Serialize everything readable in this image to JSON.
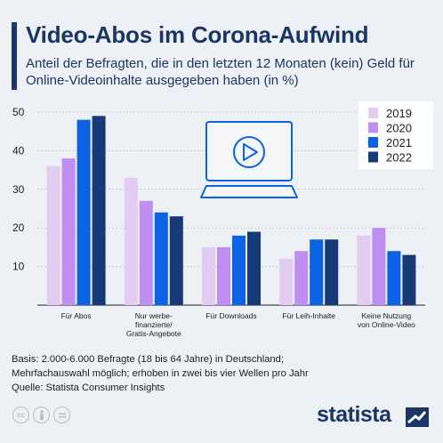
{
  "header": {
    "title": "Video-Abos im Corona-Aufwind",
    "subtitle": "Anteil der Befragten, die in den letzten 12 Monaten (kein) Geld für Online-Videoinhalte ausgegeben haben (in %)"
  },
  "footer": {
    "note_lines": [
      "Basis: 2.000-6.000 Befragte (18 bis 64 Jahre) in Deutschland;",
      "Mehrfachauswahl möglich; erhoben in zwei bis vier Wellen pro Jahr",
      "Quelle: Statista Consumer Insights"
    ],
    "brand": "statista"
  },
  "icons": [
    "creative-commons-icon",
    "attribution-icon",
    "no-derivatives-icon",
    "statista-logo-icon",
    "laptop-play-icon"
  ],
  "chart_data": {
    "type": "bar",
    "categories": [
      [
        "Für Abos"
      ],
      [
        "Nur werbe-",
        "finanzierte/",
        "Gratis-Angebote"
      ],
      [
        "Für Downloads"
      ],
      [
        "Für Leih-Inhalte"
      ],
      [
        "Keine Nutzung",
        "von Online-Video"
      ]
    ],
    "series": [
      {
        "name": "2019",
        "color": "#e2ccf2",
        "values": [
          36,
          33,
          15,
          12,
          18
        ]
      },
      {
        "name": "2020",
        "color": "#c08df2",
        "values": [
          38,
          27,
          15,
          14,
          20
        ]
      },
      {
        "name": "2021",
        "color": "#0b62e3",
        "values": [
          48,
          24,
          18,
          17,
          14
        ]
      },
      {
        "name": "2022",
        "color": "#163a78",
        "values": [
          49,
          23,
          19,
          17,
          13
        ]
      }
    ],
    "yticks": [
      10,
      20,
      30,
      40,
      50
    ],
    "ylim": [
      0,
      50
    ],
    "grid": true,
    "legend": "top-right"
  }
}
